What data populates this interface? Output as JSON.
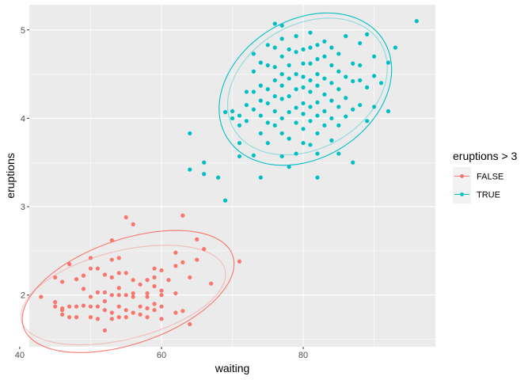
{
  "chart_data": {
    "type": "scatter",
    "title": "",
    "xlabel": "waiting",
    "ylabel": "eruptions",
    "xlim": [
      41.35,
      98.65
    ],
    "ylim": [
      1.415,
      5.285
    ],
    "x_ticks": [
      40,
      60,
      80
    ],
    "y_ticks": [
      2,
      3,
      4,
      5
    ],
    "grid": true,
    "legend": {
      "title": "eruptions > 3",
      "placement": "right",
      "entries": [
        "FALSE",
        "TRUE"
      ]
    },
    "colors": {
      "FALSE": "#F8766D",
      "TRUE": "#00BFC4"
    },
    "series": [
      {
        "name": "FALSE",
        "points": [
          [
            43,
            1.98
          ],
          [
            45,
            1.87
          ],
          [
            45,
            1.92
          ],
          [
            45,
            2.2
          ],
          [
            46,
            1.78
          ],
          [
            46,
            1.83
          ],
          [
            46,
            1.85
          ],
          [
            46,
            2.15
          ],
          [
            47,
            1.75
          ],
          [
            47,
            1.87
          ],
          [
            47,
            2.35
          ],
          [
            48,
            1.75
          ],
          [
            48,
            1.87
          ],
          [
            48,
            2.18
          ],
          [
            49,
            1.88
          ],
          [
            49,
            2.07
          ],
          [
            49,
            2.22
          ],
          [
            50,
            1.75
          ],
          [
            50,
            1.87
          ],
          [
            50,
            1.98
          ],
          [
            50,
            2.3
          ],
          [
            50,
            2.42
          ],
          [
            51,
            1.73
          ],
          [
            51,
            1.87
          ],
          [
            51,
            2.03
          ],
          [
            51,
            2.3
          ],
          [
            52,
            1.6
          ],
          [
            52,
            1.83
          ],
          [
            52,
            1.93
          ],
          [
            52,
            2.03
          ],
          [
            52,
            2.23
          ],
          [
            53,
            1.73
          ],
          [
            53,
            1.8
          ],
          [
            53,
            2.0
          ],
          [
            53,
            2.2
          ],
          [
            53,
            2.4
          ],
          [
            53,
            2.62
          ],
          [
            54,
            1.75
          ],
          [
            54,
            1.87
          ],
          [
            54,
            2.0
          ],
          [
            54,
            2.08
          ],
          [
            54,
            2.25
          ],
          [
            54,
            2.42
          ],
          [
            55,
            1.75
          ],
          [
            55,
            1.83
          ],
          [
            55,
            2.0
          ],
          [
            55,
            2.25
          ],
          [
            55,
            2.88
          ],
          [
            56,
            1.8
          ],
          [
            56,
            1.98
          ],
          [
            56,
            2.02
          ],
          [
            56,
            2.17
          ],
          [
            56,
            2.8
          ],
          [
            57,
            1.78
          ],
          [
            57,
            1.87
          ],
          [
            57,
            2.12
          ],
          [
            58,
            1.75
          ],
          [
            58,
            1.85
          ],
          [
            58,
            1.98
          ],
          [
            58,
            2.02
          ],
          [
            58,
            2.17
          ],
          [
            59,
            1.83
          ],
          [
            59,
            1.9
          ],
          [
            59,
            2.1
          ],
          [
            59,
            2.2
          ],
          [
            59,
            2.3
          ],
          [
            60,
            1.73
          ],
          [
            60,
            1.87
          ],
          [
            60,
            2.0
          ],
          [
            60,
            2.05
          ],
          [
            60,
            2.28
          ],
          [
            61,
            2.17
          ],
          [
            62,
            1.8
          ],
          [
            62,
            2.02
          ],
          [
            62,
            2.33
          ],
          [
            62,
            2.48
          ],
          [
            63,
            1.82
          ],
          [
            63,
            2.37
          ],
          [
            63,
            2.9
          ],
          [
            64,
            1.67
          ],
          [
            64,
            2.2
          ],
          [
            65,
            2.4
          ],
          [
            65,
            2.63
          ],
          [
            66,
            2.52
          ],
          [
            67,
            2.13
          ],
          [
            71,
            2.38
          ]
        ]
      },
      {
        "name": "TRUE",
        "points": [
          [
            64,
            3.83
          ],
          [
            64,
            3.42
          ],
          [
            66,
            3.5
          ],
          [
            66,
            3.37
          ],
          [
            68,
            3.33
          ],
          [
            69,
            3.07
          ],
          [
            69,
            4.07
          ],
          [
            70,
            4.0
          ],
          [
            70,
            4.08
          ],
          [
            71,
            3.57
          ],
          [
            71,
            3.72
          ],
          [
            71,
            3.92
          ],
          [
            71,
            4.03
          ],
          [
            72,
            3.97
          ],
          [
            72,
            4.15
          ],
          [
            72,
            4.3
          ],
          [
            73,
            3.58
          ],
          [
            73,
            4.1
          ],
          [
            73,
            4.3
          ],
          [
            73,
            4.53
          ],
          [
            73,
            4.73
          ],
          [
            74,
            3.33
          ],
          [
            74,
            3.83
          ],
          [
            74,
            4.03
          ],
          [
            74,
            4.2
          ],
          [
            74,
            4.37
          ],
          [
            74,
            4.63
          ],
          [
            75,
            3.72
          ],
          [
            75,
            3.95
          ],
          [
            75,
            4.17
          ],
          [
            75,
            4.33
          ],
          [
            75,
            4.6
          ],
          [
            75,
            4.83
          ],
          [
            76,
            3.92
          ],
          [
            76,
            4.08
          ],
          [
            76,
            4.25
          ],
          [
            76,
            4.43
          ],
          [
            76,
            4.58
          ],
          [
            76,
            4.8
          ],
          [
            76,
            5.07
          ],
          [
            77,
            3.57
          ],
          [
            77,
            3.83
          ],
          [
            77,
            4.0
          ],
          [
            77,
            4.22
          ],
          [
            77,
            4.37
          ],
          [
            77,
            4.5
          ],
          [
            77,
            4.7
          ],
          [
            77,
            4.9
          ],
          [
            77,
            5.05
          ],
          [
            78,
            3.45
          ],
          [
            78,
            3.77
          ],
          [
            78,
            4.07
          ],
          [
            78,
            4.25
          ],
          [
            78,
            4.45
          ],
          [
            78,
            4.6
          ],
          [
            78,
            4.78
          ],
          [
            79,
            3.6
          ],
          [
            79,
            3.95
          ],
          [
            79,
            4.12
          ],
          [
            79,
            4.33
          ],
          [
            79,
            4.5
          ],
          [
            79,
            4.75
          ],
          [
            79,
            4.93
          ],
          [
            80,
            3.72
          ],
          [
            80,
            3.88
          ],
          [
            80,
            4.05
          ],
          [
            80,
            4.17
          ],
          [
            80,
            4.35
          ],
          [
            80,
            4.47
          ],
          [
            80,
            4.62
          ],
          [
            80,
            4.78
          ],
          [
            81,
            3.7
          ],
          [
            81,
            3.97
          ],
          [
            81,
            4.13
          ],
          [
            81,
            4.3
          ],
          [
            81,
            4.43
          ],
          [
            81,
            4.62
          ],
          [
            81,
            4.8
          ],
          [
            81,
            4.97
          ],
          [
            82,
            3.33
          ],
          [
            82,
            3.6
          ],
          [
            82,
            3.83
          ],
          [
            82,
            4.03
          ],
          [
            82,
            4.18
          ],
          [
            82,
            4.37
          ],
          [
            82,
            4.5
          ],
          [
            82,
            4.67
          ],
          [
            82,
            4.83
          ],
          [
            83,
            3.92
          ],
          [
            83,
            4.08
          ],
          [
            83,
            4.27
          ],
          [
            83,
            4.45
          ],
          [
            83,
            4.7
          ],
          [
            83,
            4.87
          ],
          [
            84,
            3.75
          ],
          [
            84,
            4.0
          ],
          [
            84,
            4.2
          ],
          [
            84,
            4.4
          ],
          [
            84,
            4.6
          ],
          [
            84,
            4.8
          ],
          [
            85,
            3.6
          ],
          [
            85,
            3.92
          ],
          [
            85,
            4.13
          ],
          [
            85,
            4.33
          ],
          [
            85,
            4.53
          ],
          [
            85,
            4.73
          ],
          [
            86,
            4.02
          ],
          [
            86,
            4.23
          ],
          [
            86,
            4.47
          ],
          [
            86,
            4.93
          ],
          [
            87,
            3.5
          ],
          [
            87,
            4.1
          ],
          [
            87,
            4.42
          ],
          [
            87,
            4.62
          ],
          [
            88,
            4.15
          ],
          [
            88,
            4.43
          ],
          [
            88,
            4.6
          ],
          [
            88,
            4.85
          ],
          [
            89,
            3.97
          ],
          [
            89,
            4.35
          ],
          [
            89,
            4.95
          ],
          [
            90,
            4.13
          ],
          [
            90,
            4.48
          ],
          [
            90,
            4.7
          ],
          [
            91,
            4.4
          ],
          [
            92,
            4.08
          ],
          [
            92,
            4.63
          ],
          [
            93,
            4.8
          ],
          [
            96,
            5.1
          ]
        ]
      }
    ],
    "ellipses": [
      {
        "series": "FALSE",
        "kind": "normal",
        "center": [
          55.3,
          2.04
        ],
        "rx": 15.6,
        "ry": 0.59,
        "angle_deg": 19
      },
      {
        "series": "FALSE",
        "kind": "t",
        "center": [
          54.6,
          2.0
        ],
        "rx": 14.8,
        "ry": 0.5,
        "angle_deg": 14
      },
      {
        "series": "TRUE",
        "kind": "normal",
        "center": [
          80.3,
          4.33
        ],
        "rx": 13.0,
        "ry": 0.78,
        "angle_deg": 32
      },
      {
        "series": "TRUE",
        "kind": "t",
        "center": [
          80.6,
          4.36
        ],
        "rx": 12.0,
        "ry": 0.7,
        "angle_deg": 30
      }
    ],
    "style": {
      "panel_bg": "#EBEBEB",
      "grid_major": "#FFFFFF"
    }
  }
}
